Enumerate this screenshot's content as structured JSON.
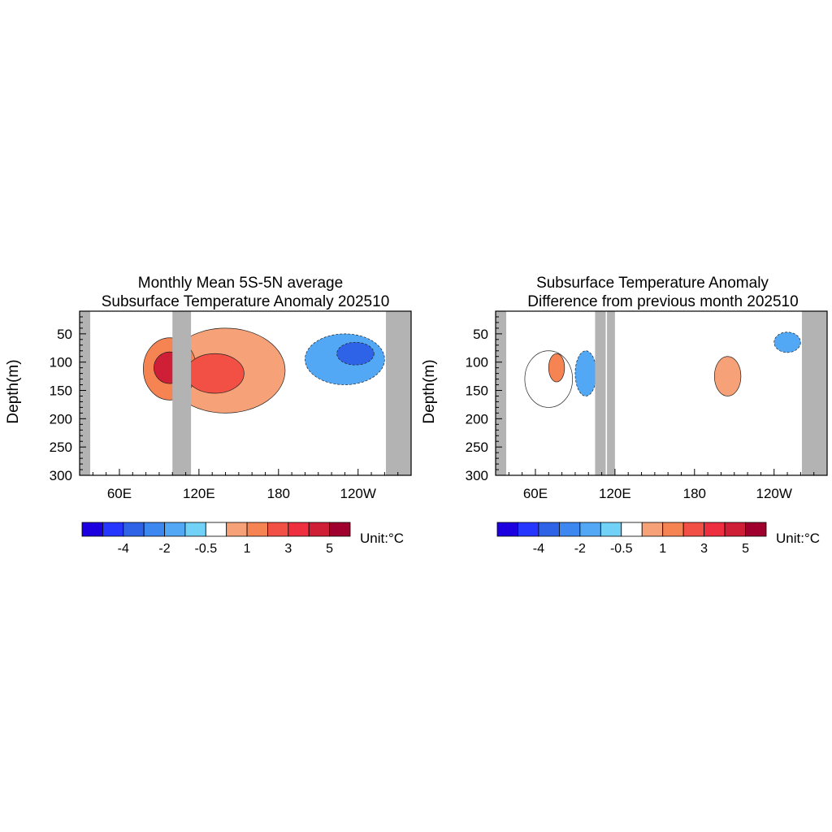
{
  "chart_data": [
    {
      "type": "heatmap",
      "title_line1": "Monthly Mean 5S-5N average",
      "title_line2": "Subsurface Temperature Anomaly 202510",
      "ylabel": "Depth(m)",
      "ylim": [
        300,
        10
      ],
      "xlim_deg_east": [
        30,
        280
      ],
      "x_ticks": [
        {
          "label": "60E",
          "lon": 60
        },
        {
          "label": "120E",
          "lon": 120
        },
        {
          "label": "180",
          "lon": 180
        },
        {
          "label": "120W",
          "lon": 240
        }
      ],
      "y_ticks": [
        50,
        100,
        150,
        200,
        250,
        300
      ],
      "land_masks_lon": [
        [
          30,
          38
        ],
        [
          100,
          114
        ],
        [
          261,
          280
        ]
      ],
      "anomaly_features": [
        {
          "center_lon": 98,
          "center_depth": 110,
          "lon_halfwidth": 12,
          "depth_halfwidth": 28,
          "level_index": 11
        },
        {
          "center_lon": 98,
          "center_depth": 112,
          "lon_halfwidth": 20,
          "depth_halfwidth": 55,
          "level_index": 8
        },
        {
          "center_lon": 132,
          "center_depth": 120,
          "lon_halfwidth": 22,
          "depth_halfwidth": 35,
          "level_index": 9
        },
        {
          "center_lon": 140,
          "center_depth": 115,
          "lon_halfwidth": 45,
          "depth_halfwidth": 75,
          "level_index": 7
        },
        {
          "center_lon": 238,
          "center_depth": 85,
          "lon_halfwidth": 14,
          "depth_halfwidth": 20,
          "level_index": 2
        },
        {
          "center_lon": 230,
          "center_depth": 95,
          "lon_halfwidth": 30,
          "depth_halfwidth": 45,
          "level_index": 4
        }
      ],
      "colorbar": {
        "tick_labels": [
          "-4",
          "-2",
          "-0.5",
          "1",
          "3",
          "5"
        ],
        "unit_label": "Unit:",
        "unit_symbol": "°C"
      }
    },
    {
      "type": "heatmap",
      "title_line1": "Subsurface Temperature Anomaly",
      "title_line2": "Difference from previous month 202510",
      "ylabel": "Depth(m)",
      "ylim": [
        300,
        10
      ],
      "xlim_deg_east": [
        30,
        280
      ],
      "x_ticks": [
        {
          "label": "60E",
          "lon": 60
        },
        {
          "label": "120E",
          "lon": 120
        },
        {
          "label": "180",
          "lon": 180
        },
        {
          "label": "120W",
          "lon": 240
        }
      ],
      "y_ticks": [
        50,
        100,
        150,
        200,
        250,
        300
      ],
      "land_masks_lon": [
        [
          30,
          38
        ],
        [
          105,
          113
        ],
        [
          114,
          120
        ],
        [
          261,
          280
        ]
      ],
      "anomaly_features": [
        {
          "center_lon": 76,
          "center_depth": 110,
          "lon_halfwidth": 6,
          "depth_halfwidth": 25,
          "level_index": 8
        },
        {
          "center_lon": 70,
          "center_depth": 130,
          "lon_halfwidth": 18,
          "depth_halfwidth": 50,
          "level_index": 6
        },
        {
          "center_lon": 98,
          "center_depth": 120,
          "lon_halfwidth": 8,
          "depth_halfwidth": 40,
          "level_index": 4
        },
        {
          "center_lon": 205,
          "center_depth": 125,
          "lon_halfwidth": 10,
          "depth_halfwidth": 35,
          "level_index": 7
        },
        {
          "center_lon": 250,
          "center_depth": 65,
          "lon_halfwidth": 10,
          "depth_halfwidth": 18,
          "level_index": 4
        }
      ],
      "colorbar": {
        "tick_labels": [
          "-4",
          "-2",
          "-0.5",
          "1",
          "3",
          "5"
        ],
        "unit_label": "Unit:",
        "unit_symbol": "°C"
      }
    }
  ],
  "colorbar_levels": [
    -5,
    -4,
    -3,
    -2,
    -1,
    -0.5,
    0.5,
    1,
    2,
    3,
    4,
    5
  ],
  "colorbar_colors": [
    "#1d00e0",
    "#2537ff",
    "#2e63e8",
    "#3d88f0",
    "#53a8f5",
    "#72d1f7",
    "#ffffff",
    "#f6a177",
    "#f68352",
    "#f25044",
    "#ed2f3f",
    "#cf1f37",
    "#a0002d"
  ],
  "land_color": "#b3b3b3"
}
